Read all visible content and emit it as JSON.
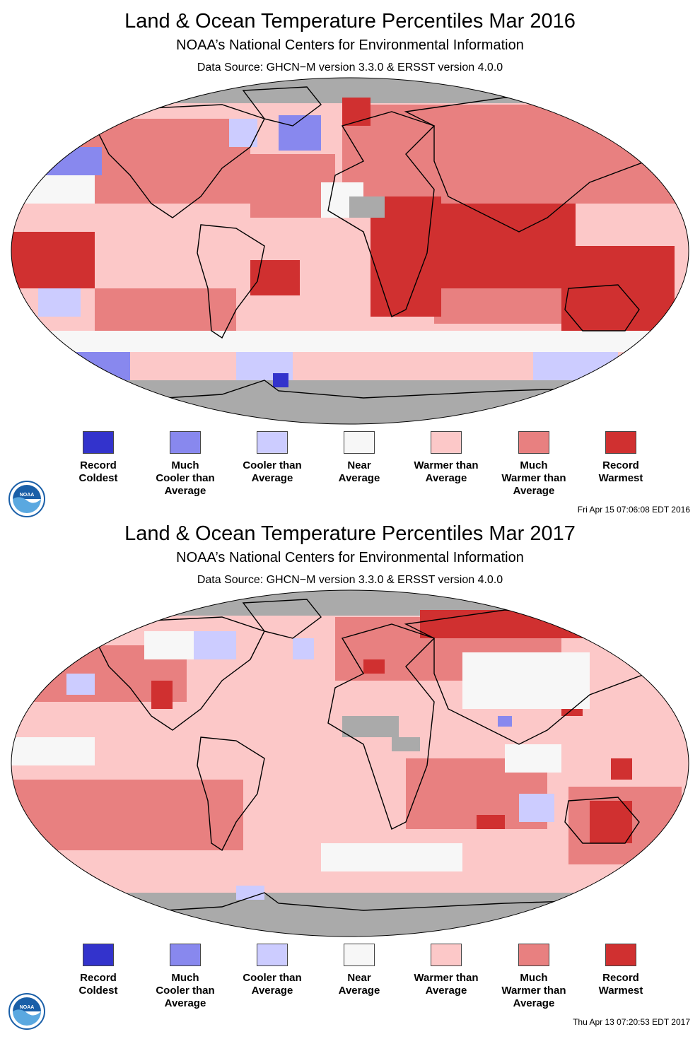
{
  "colors": {
    "record_coldest": "#3333cc",
    "much_cooler": "#8888ee",
    "cooler": "#ccccff",
    "near": "#f7f7f7",
    "warmer": "#fcc8c8",
    "much_warmer": "#e88080",
    "record_warmest": "#d03030",
    "no_data": "#aaaaaa"
  },
  "legend": [
    {
      "lines": [
        "Record",
        "Coldest"
      ],
      "color": "#3333cc"
    },
    {
      "lines": [
        "Much",
        "Cooler than",
        "Average"
      ],
      "color": "#8888ee"
    },
    {
      "lines": [
        "Cooler than",
        "Average"
      ],
      "color": "#ccccff"
    },
    {
      "lines": [
        "Near",
        "Average"
      ],
      "color": "#f7f7f7"
    },
    {
      "lines": [
        "Warmer than",
        "Average"
      ],
      "color": "#fcc8c8"
    },
    {
      "lines": [
        "Much",
        "Warmer than",
        "Average"
      ],
      "color": "#e88080"
    },
    {
      "lines": [
        "Record",
        "Warmest"
      ],
      "color": "#d03030"
    }
  ],
  "panels": [
    {
      "title": "Land & Ocean Temperature Percentiles Mar 2016",
      "subtitle": "NOAA’s National Centers for Environmental Information",
      "source": "Data Source: GHCN−M version 3.3.0 & ERSST version 4.0.0",
      "timestamp": "Fri Apr 15 07:06:08 EDT 2016",
      "logo_text": "NOAA"
    },
    {
      "title": "Land & Ocean Temperature Percentiles Mar 2017",
      "subtitle": "NOAA’s National Centers for Environmental Information",
      "source": "Data Source: GHCN−M version 3.3.0 & ERSST version 4.0.0",
      "timestamp": "Thu Apr 13 07:20:53 EDT 2017",
      "logo_text": "NOAA"
    }
  ]
}
